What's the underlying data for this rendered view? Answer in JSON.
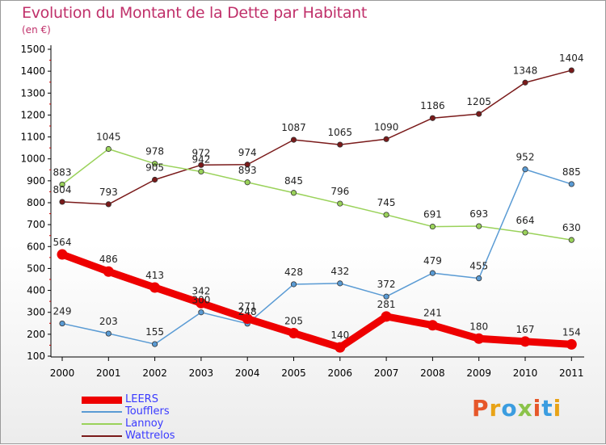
{
  "title": "Evolution du Montant de la Dette par Habitant",
  "unit": "(en €)",
  "logo": {
    "text": "Proxiti",
    "colors": [
      "#e6572a",
      "#e8a317",
      "#3b9de0",
      "#8bc34a",
      "#e6572a",
      "#3b9de0",
      "#e8a317"
    ]
  },
  "chart_data": {
    "type": "line",
    "x": [
      "2000",
      "2001",
      "2002",
      "2003",
      "2004",
      "2005",
      "2006",
      "2007",
      "2008",
      "2009",
      "2010",
      "2011"
    ],
    "ylim": [
      100,
      1500
    ],
    "yticks": [
      100,
      200,
      300,
      400,
      500,
      600,
      700,
      800,
      900,
      1000,
      1100,
      1200,
      1300,
      1400,
      1500
    ],
    "grid": false,
    "legend_position": "bottom-left",
    "series": [
      {
        "name": "LEERS",
        "color": "#ee0000",
        "values": [
          564,
          486,
          413,
          342,
          271,
          205,
          140,
          281,
          241,
          180,
          167,
          154
        ]
      },
      {
        "name": "Toufflers",
        "color": "#5a9bd4",
        "values": [
          249,
          203,
          155,
          300,
          248,
          428,
          432,
          372,
          479,
          455,
          952,
          885
        ]
      },
      {
        "name": "Lannoy",
        "color": "#9ad25a",
        "values": [
          883,
          1045,
          978,
          942,
          893,
          845,
          796,
          745,
          691,
          693,
          664,
          630
        ]
      },
      {
        "name": "Wattrelos",
        "color": "#7a1a1a",
        "values": [
          804,
          793,
          905,
          972,
          974,
          1087,
          1065,
          1090,
          1186,
          1205,
          1348,
          1404
        ]
      }
    ]
  }
}
